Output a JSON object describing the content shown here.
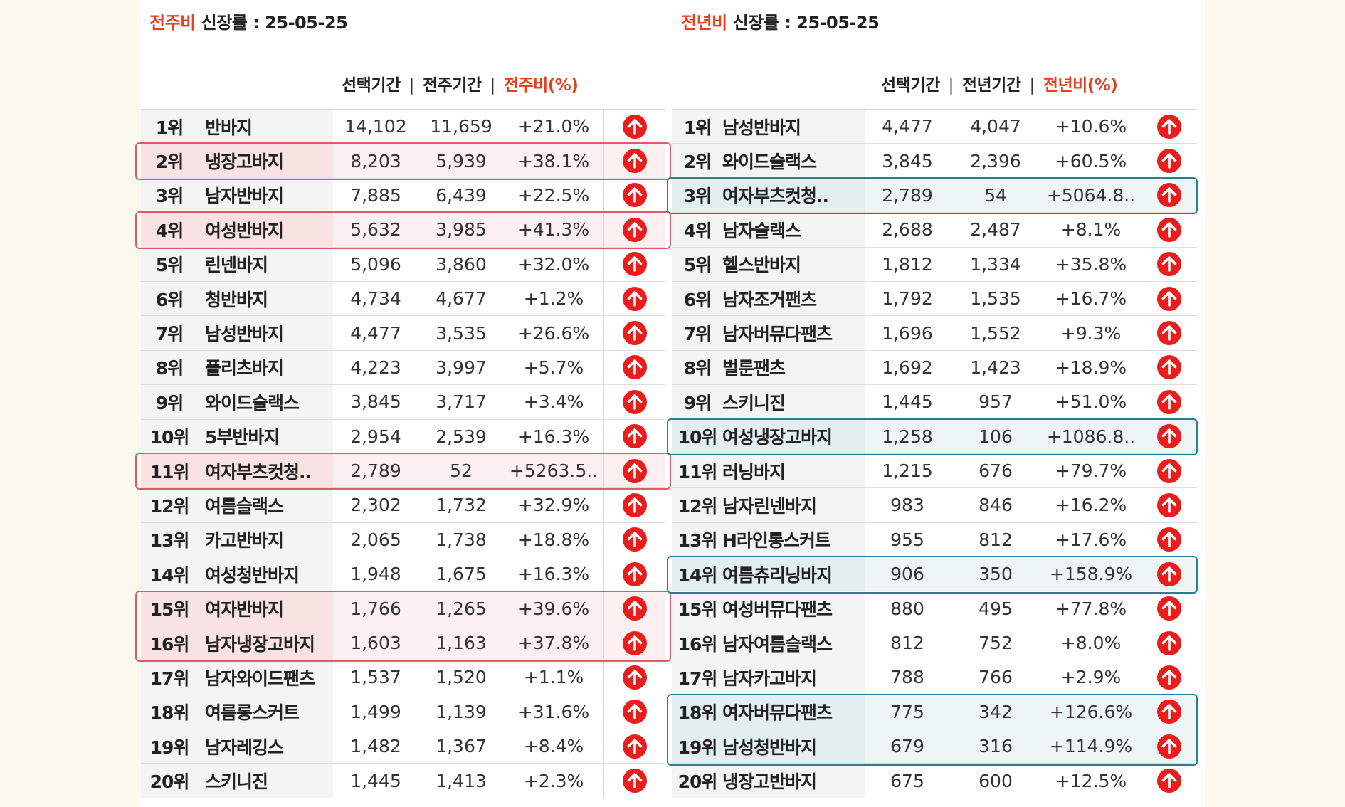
{
  "left": {
    "title_accent": "전주비",
    "title_rest": "신장률",
    "title_date": ": 25-05-25",
    "header_selected": "선택기간",
    "header_compare": "전주기간",
    "header_ratio": "전주비(%)",
    "rows": [
      {
        "rank": "1위",
        "name": "반바지",
        "a": "14,102",
        "b": "11,659",
        "c": "+21.0%"
      },
      {
        "rank": "2위",
        "name": "냉장고바지",
        "a": "8,203",
        "b": "5,939",
        "c": "+38.1%"
      },
      {
        "rank": "3위",
        "name": "남자반바지",
        "a": "7,885",
        "b": "6,439",
        "c": "+22.5%"
      },
      {
        "rank": "4위",
        "name": "여성반바지",
        "a": "5,632",
        "b": "3,985",
        "c": "+41.3%"
      },
      {
        "rank": "5위",
        "name": "린넨바지",
        "a": "5,096",
        "b": "3,860",
        "c": "+32.0%"
      },
      {
        "rank": "6위",
        "name": "청반바지",
        "a": "4,734",
        "b": "4,677",
        "c": "+1.2%"
      },
      {
        "rank": "7위",
        "name": "남성반바지",
        "a": "4,477",
        "b": "3,535",
        "c": "+26.6%"
      },
      {
        "rank": "8위",
        "name": "플리츠바지",
        "a": "4,223",
        "b": "3,997",
        "c": "+5.7%"
      },
      {
        "rank": "9위",
        "name": "와이드슬랙스",
        "a": "3,845",
        "b": "3,717",
        "c": "+3.4%"
      },
      {
        "rank": "10위",
        "name": "5부반바지",
        "a": "2,954",
        "b": "2,539",
        "c": "+16.3%"
      },
      {
        "rank": "11위",
        "name": "여자부츠컷청..",
        "a": "2,789",
        "b": "52",
        "c": "+5263.5.."
      },
      {
        "rank": "12위",
        "name": "여름슬랙스",
        "a": "2,302",
        "b": "1,732",
        "c": "+32.9%"
      },
      {
        "rank": "13위",
        "name": "카고반바지",
        "a": "2,065",
        "b": "1,738",
        "c": "+18.8%"
      },
      {
        "rank": "14위",
        "name": "여성청반바지",
        "a": "1,948",
        "b": "1,675",
        "c": "+16.3%"
      },
      {
        "rank": "15위",
        "name": "여자반바지",
        "a": "1,766",
        "b": "1,265",
        "c": "+39.6%"
      },
      {
        "rank": "16위",
        "name": "남자냉장고바지",
        "a": "1,603",
        "b": "1,163",
        "c": "+37.8%"
      },
      {
        "rank": "17위",
        "name": "남자와이드팬츠",
        "a": "1,537",
        "b": "1,520",
        "c": "+1.1%"
      },
      {
        "rank": "18위",
        "name": "여름롱스커트",
        "a": "1,499",
        "b": "1,139",
        "c": "+31.6%"
      },
      {
        "rank": "19위",
        "name": "남자레깅스",
        "a": "1,482",
        "b": "1,367",
        "c": "+8.4%"
      },
      {
        "rank": "20위",
        "name": "스키니진",
        "a": "1,445",
        "b": "1,413",
        "c": "+2.3%"
      }
    ]
  },
  "right": {
    "title_accent": "전년비",
    "title_rest": "신장률",
    "title_date": ": 25-05-25",
    "header_selected": "선택기간",
    "header_compare": "전년기간",
    "header_ratio": "전년비(%)",
    "rows": [
      {
        "rank": "1위",
        "name": "남성반바지",
        "a": "4,477",
        "b": "4,047",
        "c": "+10.6%"
      },
      {
        "rank": "2위",
        "name": "와이드슬랙스",
        "a": "3,845",
        "b": "2,396",
        "c": "+60.5%"
      },
      {
        "rank": "3위",
        "name": "여자부츠컷청..",
        "a": "2,789",
        "b": "54",
        "c": "+5064.8.."
      },
      {
        "rank": "4위",
        "name": "남자슬랙스",
        "a": "2,688",
        "b": "2,487",
        "c": "+8.1%"
      },
      {
        "rank": "5위",
        "name": "헬스반바지",
        "a": "1,812",
        "b": "1,334",
        "c": "+35.8%"
      },
      {
        "rank": "6위",
        "name": "남자조거팬츠",
        "a": "1,792",
        "b": "1,535",
        "c": "+16.7%"
      },
      {
        "rank": "7위",
        "name": "남자버뮤다팬츠",
        "a": "1,696",
        "b": "1,552",
        "c": "+9.3%"
      },
      {
        "rank": "8위",
        "name": "벌룬팬츠",
        "a": "1,692",
        "b": "1,423",
        "c": "+18.9%"
      },
      {
        "rank": "9위",
        "name": "스키니진",
        "a": "1,445",
        "b": "957",
        "c": "+51.0%"
      },
      {
        "rank": "10위",
        "name": "여성냉장고바지",
        "a": "1,258",
        "b": "106",
        "c": "+1086.8.."
      },
      {
        "rank": "11위",
        "name": "러닝바지",
        "a": "1,215",
        "b": "676",
        "c": "+79.7%"
      },
      {
        "rank": "12위",
        "name": "남자린넨바지",
        "a": "983",
        "b": "846",
        "c": "+16.2%"
      },
      {
        "rank": "13위",
        "name": "H라인롱스커트",
        "a": "955",
        "b": "812",
        "c": "+17.6%"
      },
      {
        "rank": "14위",
        "name": "여름츄리닝바지",
        "a": "906",
        "b": "350",
        "c": "+158.9%"
      },
      {
        "rank": "15위",
        "name": "여성버뮤다팬츠",
        "a": "880",
        "b": "495",
        "c": "+77.8%"
      },
      {
        "rank": "16위",
        "name": "남자여름슬랙스",
        "a": "812",
        "b": "752",
        "c": "+8.0%"
      },
      {
        "rank": "17위",
        "name": "남자카고바지",
        "a": "788",
        "b": "766",
        "c": "+2.9%"
      },
      {
        "rank": "18위",
        "name": "여자버뮤다팬츠",
        "a": "775",
        "b": "342",
        "c": "+126.6%"
      },
      {
        "rank": "19위",
        "name": "남성청반바지",
        "a": "679",
        "b": "316",
        "c": "+114.9%"
      },
      {
        "rank": "20위",
        "name": "냉장고반바지",
        "a": "675",
        "b": "600",
        "c": "+12.5%"
      }
    ]
  },
  "icon": "arrow-up-circle-icon",
  "colors": {
    "accent": "#e8401c",
    "icon_red": "#ea1c1c",
    "highlight_red": "#e05a68",
    "highlight_blue": "#2c7d8f"
  }
}
